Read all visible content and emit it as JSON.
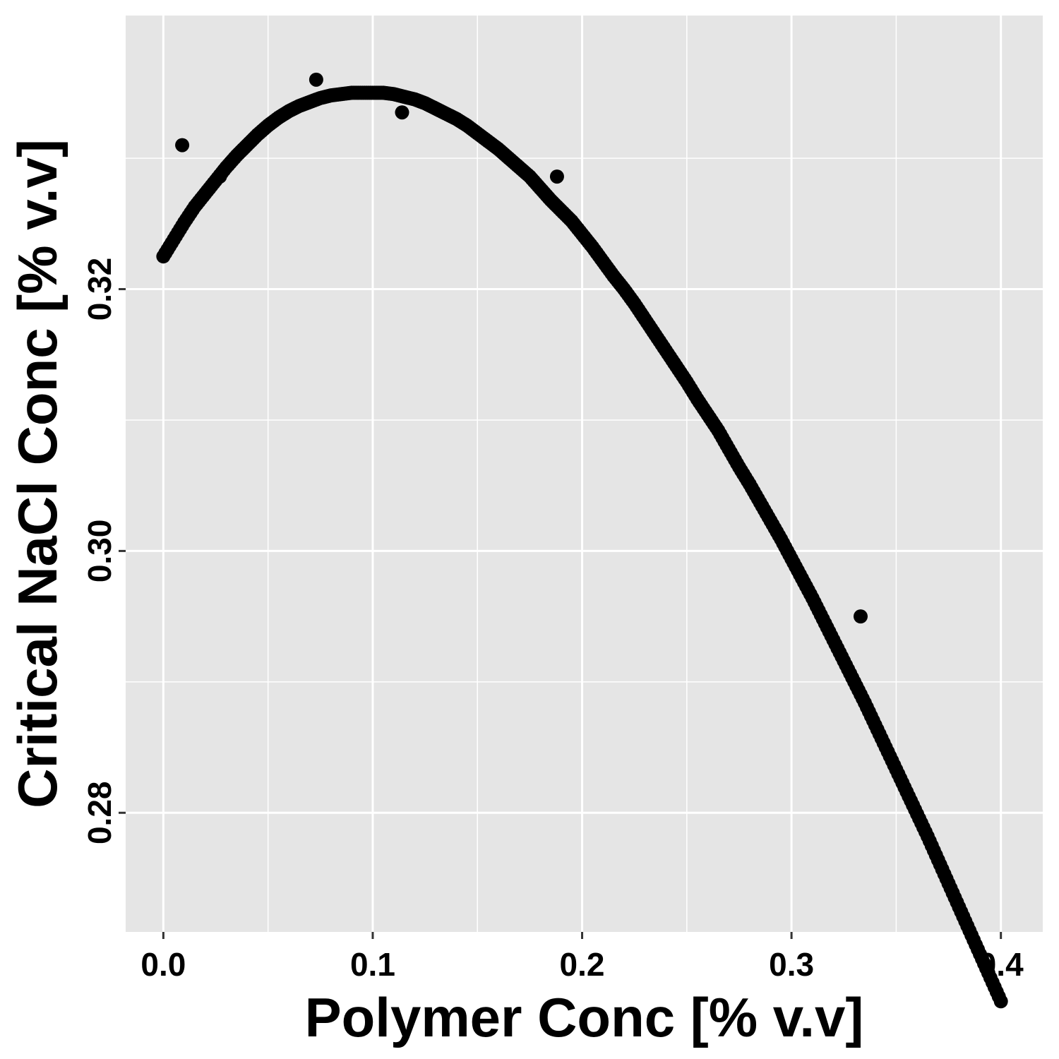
{
  "chart_data": {
    "type": "scatter",
    "title": "",
    "xlabel": "Polymer Conc [% v.v]",
    "ylabel": "Critical NaCl Conc [% v.v]",
    "xlim": [
      -0.018,
      0.42
    ],
    "ylim": [
      0.2709,
      0.3409
    ],
    "x_ticks": [
      {
        "value": 0.0,
        "label": "0.0"
      },
      {
        "value": 0.1,
        "label": "0.1"
      },
      {
        "value": 0.2,
        "label": "0.2"
      },
      {
        "value": 0.3,
        "label": "0.3"
      },
      {
        "value": 0.4,
        "label": "0.4"
      }
    ],
    "y_ticks": [
      {
        "value": 0.28,
        "label": "0.28"
      },
      {
        "value": 0.3,
        "label": "0.30"
      },
      {
        "value": 0.32,
        "label": "0.32"
      }
    ],
    "x_minor": [
      0.05,
      0.15,
      0.25,
      0.35
    ],
    "y_minor": [
      0.27,
      0.29,
      0.31,
      0.33
    ],
    "grid": true,
    "legend": "none",
    "background_color": "#e5e5e5",
    "grid_color": "#ffffff",
    "point_color": "#000000",
    "curve": {
      "note_points": [
        [
          0.0,
          0.3225
        ],
        [
          0.005,
          0.3238
        ],
        [
          0.01,
          0.3251
        ],
        [
          0.015,
          0.3263
        ],
        [
          0.02,
          0.3273
        ],
        [
          0.025,
          0.3283
        ],
        [
          0.03,
          0.3293
        ],
        [
          0.035,
          0.3302
        ],
        [
          0.04,
          0.331
        ],
        [
          0.045,
          0.3318
        ],
        [
          0.05,
          0.3325
        ],
        [
          0.055,
          0.3331
        ],
        [
          0.06,
          0.3336
        ],
        [
          0.065,
          0.334
        ],
        [
          0.07,
          0.3343
        ],
        [
          0.075,
          0.3346
        ],
        [
          0.08,
          0.3348
        ],
        [
          0.085,
          0.3349
        ],
        [
          0.09,
          0.335
        ],
        [
          0.095,
          0.335
        ],
        [
          0.1,
          0.335
        ],
        [
          0.105,
          0.335
        ],
        [
          0.11,
          0.3349
        ],
        [
          0.115,
          0.3347
        ],
        [
          0.12,
          0.3345
        ],
        [
          0.125,
          0.3342
        ],
        [
          0.13,
          0.3338
        ],
        [
          0.135,
          0.3334
        ],
        [
          0.14,
          0.333
        ],
        [
          0.145,
          0.3325
        ],
        [
          0.15,
          0.3319
        ],
        [
          0.155,
          0.3313
        ],
        [
          0.16,
          0.3307
        ],
        [
          0.165,
          0.33
        ],
        [
          0.17,
          0.3293
        ],
        [
          0.175,
          0.3286
        ],
        [
          0.18,
          0.3277
        ],
        [
          0.185,
          0.3268
        ],
        [
          0.19,
          0.326
        ],
        [
          0.195,
          0.3252
        ],
        [
          0.2,
          0.3242
        ],
        [
          0.205,
          0.3232
        ],
        [
          0.21,
          0.3221
        ],
        [
          0.215,
          0.321
        ],
        [
          0.22,
          0.32
        ],
        [
          0.225,
          0.3189
        ],
        [
          0.23,
          0.3177
        ],
        [
          0.235,
          0.3165
        ],
        [
          0.24,
          0.3153
        ],
        [
          0.245,
          0.3141
        ],
        [
          0.25,
          0.3129
        ],
        [
          0.255,
          0.3116
        ],
        [
          0.26,
          0.3104
        ],
        [
          0.265,
          0.3092
        ],
        [
          0.27,
          0.3078
        ],
        [
          0.275,
          0.3064
        ],
        [
          0.28,
          0.3051
        ],
        [
          0.285,
          0.3037
        ],
        [
          0.29,
          0.3023
        ],
        [
          0.295,
          0.3009
        ],
        [
          0.3,
          0.2994
        ],
        [
          0.305,
          0.2979
        ],
        [
          0.31,
          0.2964
        ],
        [
          0.315,
          0.2948
        ],
        [
          0.32,
          0.2932
        ],
        [
          0.325,
          0.2916
        ],
        [
          0.33,
          0.29
        ],
        [
          0.335,
          0.2884
        ],
        [
          0.34,
          0.2867
        ],
        [
          0.345,
          0.285
        ],
        [
          0.35,
          0.2833
        ],
        [
          0.355,
          0.2816
        ],
        [
          0.36,
          0.2799
        ],
        [
          0.365,
          0.2782
        ],
        [
          0.37,
          0.2764
        ],
        [
          0.375,
          0.2746
        ],
        [
          0.38,
          0.2728
        ],
        [
          0.385,
          0.271
        ],
        [
          0.39,
          0.2692
        ],
        [
          0.395,
          0.2674
        ],
        [
          0.4,
          0.2656
        ]
      ]
    },
    "outliers": [
      [
        0.009,
        0.331
      ],
      [
        0.073,
        0.336
      ],
      [
        0.114,
        0.3335
      ],
      [
        0.027,
        0.3286
      ],
      [
        0.188,
        0.3286
      ],
      [
        0.333,
        0.295
      ]
    ]
  }
}
